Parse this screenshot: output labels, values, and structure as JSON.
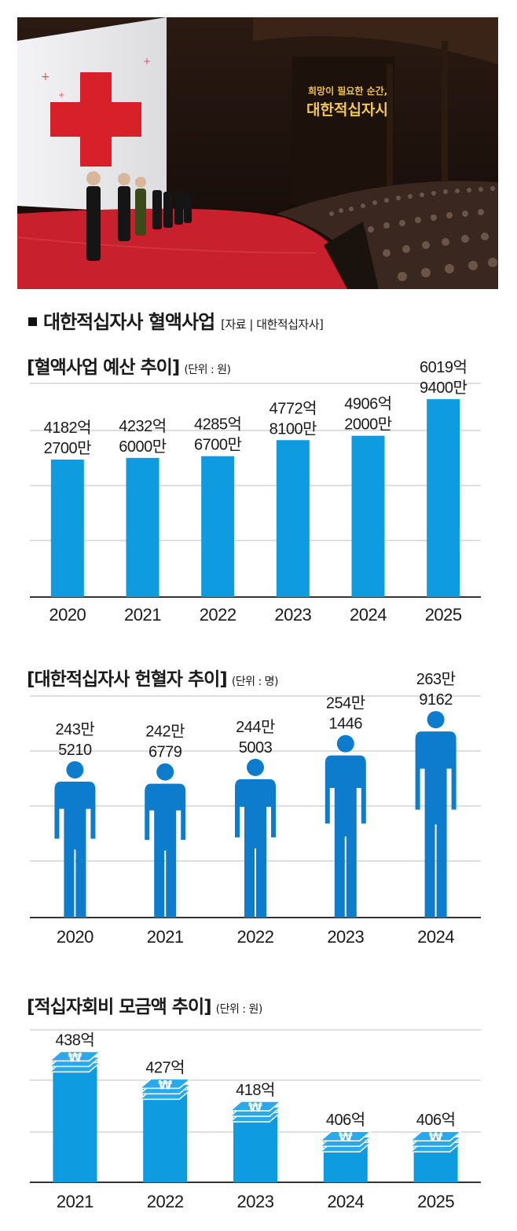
{
  "header": {
    "title": "대한적십자사 혈액사업",
    "source": "[자료 | 대한적십자사]"
  },
  "photo": {
    "banner_line1": "희망이 필요한 순간,",
    "banner_line2": "대한적십자사"
  },
  "chart_data": [
    {
      "type": "bar",
      "title": "[혈액사업 예산 추이]",
      "unit": "(단위 : 원)",
      "categories": [
        "2020",
        "2021",
        "2022",
        "2023",
        "2024",
        "2025"
      ],
      "values": [
        418227000000,
        423260000000,
        428567000000,
        477281000000,
        490620000000,
        601994000000
      ],
      "value_labels": [
        [
          "4182억",
          "2700만"
        ],
        [
          "4232억",
          "6000만"
        ],
        [
          "4285억",
          "6700만"
        ],
        [
          "4772억",
          "8100만"
        ],
        [
          "4906억",
          "2000만"
        ],
        [
          "6019억",
          "9400만"
        ]
      ],
      "ylim": [
        0,
        650000000000
      ],
      "grid": true,
      "color": "#0f9be0"
    },
    {
      "type": "bar",
      "title": "[대한적십자사 헌혈자 추이]",
      "unit": "(단위 : 명)",
      "marker": "person-icon",
      "categories": [
        "2020",
        "2021",
        "2022",
        "2023",
        "2024"
      ],
      "values": [
        2435210,
        2426779,
        2445003,
        2541446,
        2639162
      ],
      "value_labels": [
        [
          "243만",
          "5210"
        ],
        [
          "242만",
          "6779"
        ],
        [
          "244만",
          "5003"
        ],
        [
          "254만",
          "1446"
        ],
        [
          "263만",
          "9162"
        ]
      ],
      "ylim": [
        1800000,
        2700000
      ],
      "grid": true,
      "color": "#0e7ccc"
    },
    {
      "type": "bar",
      "title": "[적십자회비 모금액 추이]",
      "unit": "(단위 : 원)",
      "marker": "won-coin-stack-icon",
      "categories": [
        "2021",
        "2022",
        "2023",
        "2024",
        "2025"
      ],
      "values": [
        43800000000,
        42700000000,
        41800000000,
        40600000000,
        40600000000
      ],
      "value_labels": [
        [
          "438억"
        ],
        [
          "427억"
        ],
        [
          "418억"
        ],
        [
          "406억"
        ],
        [
          "406억"
        ]
      ],
      "ylim": [
        38500000000,
        44600000000
      ],
      "grid": true,
      "color": "#0f9be0"
    }
  ]
}
